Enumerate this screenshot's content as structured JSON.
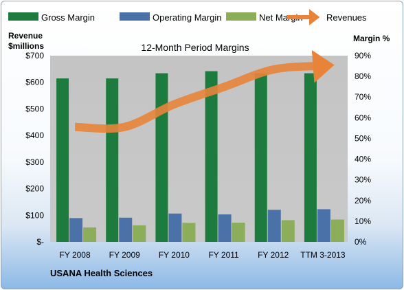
{
  "chart_data": {
    "type": "bar",
    "title": "12-Month Period Margins",
    "y_left_label_line1": "Revenue",
    "y_left_label_line2": "$millions",
    "y_right_label": "Margin %",
    "y_left_ticks": [
      "$-",
      "$100",
      "$200",
      "$300",
      "$400",
      "$500",
      "$600",
      "$700"
    ],
    "y_right_ticks": [
      "0%",
      "10%",
      "20%",
      "30%",
      "40%",
      "50%",
      "60%",
      "70%",
      "80%",
      "90%"
    ],
    "ylim_left": [
      0,
      700
    ],
    "ylim_right": [
      0,
      90
    ],
    "categories": [
      "FY 2008",
      "FY 2009",
      "FY 2010",
      "FY 2011",
      "FY 2012",
      "TTM 3-2013"
    ],
    "series": [
      {
        "name": "Gross Margin",
        "axis": "right",
        "color": "#1d7b3e",
        "values": [
          79,
          79,
          81.5,
          82.5,
          81.5,
          81.5
        ]
      },
      {
        "name": "Operating Margin",
        "axis": "right",
        "color": "#4a72a8",
        "values": [
          11.5,
          11.7,
          13.7,
          13.3,
          15.5,
          15.8
        ]
      },
      {
        "name": "Net Margin",
        "axis": "right",
        "color": "#8cad5a",
        "values": [
          7,
          8,
          9.2,
          9.3,
          10.5,
          10.8
        ]
      },
      {
        "name": "Revenues",
        "axis": "left",
        "type": "line",
        "color": "#e8843a",
        "values": [
          432,
          432,
          517,
          582,
          648,
          662
        ]
      }
    ],
    "legend_position": "top",
    "grid": false,
    "subtitle": "USANA Health Sciences"
  }
}
